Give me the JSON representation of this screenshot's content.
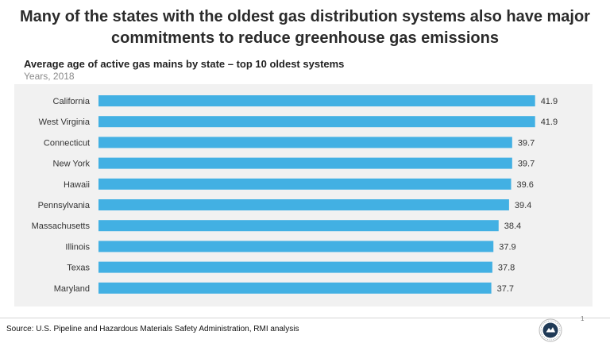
{
  "slide": {
    "title": "Many of the states with the oldest gas distribution systems also have major commitments to reduce greenhouse gas emissions",
    "source": "Source: U.S. Pipeline and Hazardous Materials Safety Administration, RMI analysis",
    "page_number": "1"
  },
  "colors": {
    "bar": "#42b0e3",
    "plot_background": "#f1f1f1",
    "title_text": "#2b2b2b",
    "subtitle_text": "#8a8a8a"
  },
  "logo": {
    "name": "seal-logo-icon",
    "lettering": "ROCKY MOUNTAIN INSTITUTE"
  },
  "chart_data": {
    "type": "bar",
    "orientation": "horizontal",
    "title": "Average age of active gas mains by state – top 10 oldest systems",
    "subtitle": "Years, 2018",
    "categories": [
      "California",
      "West Virginia",
      "Connecticut",
      "New York",
      "Hawaii",
      "Pennsylvania",
      "Massachusetts",
      "Illinois",
      "Texas",
      "Maryland"
    ],
    "values": [
      41.9,
      41.9,
      39.7,
      39.7,
      39.6,
      39.4,
      38.4,
      37.9,
      37.8,
      37.7
    ],
    "value_labels": [
      "41.9",
      "41.9",
      "39.7",
      "39.7",
      "39.6",
      "39.4",
      "38.4",
      "37.9",
      "37.8",
      "37.7"
    ],
    "xlabel": "",
    "ylabel": "",
    "xlim": [
      0,
      42
    ],
    "grid": false,
    "legend": "none"
  }
}
